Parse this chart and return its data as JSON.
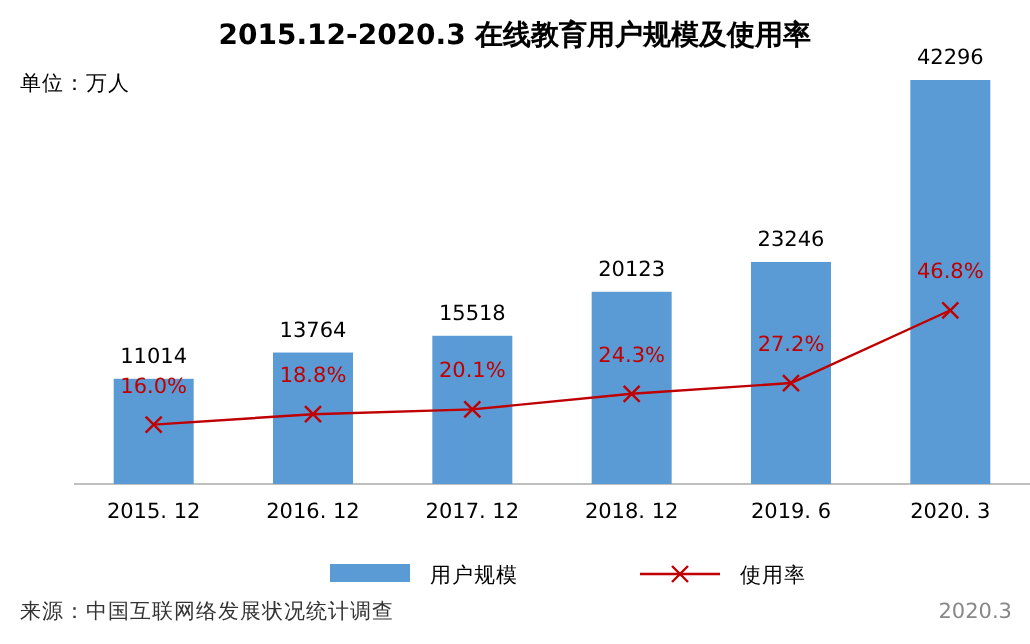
{
  "chart_data": {
    "type": "bar",
    "title": "2015.12-2020.3 在线教育用户规模及使用率",
    "categories": [
      "2015. 12",
      "2016. 12",
      "2017. 12",
      "2018. 12",
      "2019. 6",
      "2020. 3"
    ],
    "series": [
      {
        "name": "用户规模",
        "color": "#5b9bd5",
        "values": [
          11014,
          13764,
          15518,
          20123,
          23246,
          42296
        ],
        "value_labels": [
          "11014",
          "13764",
          "15518",
          "20123",
          "23246",
          "42296"
        ]
      },
      {
        "name": "使用率",
        "type": "line",
        "axis": "y2",
        "marker": "cross",
        "color": "#c00000",
        "values": [
          16.0,
          18.8,
          20.1,
          24.3,
          27.2,
          46.8
        ],
        "value_labels": [
          "16.0%",
          "18.8%",
          "20.1%",
          "24.3%",
          "27.2%",
          "46.8%"
        ]
      }
    ],
    "legend": "bottom",
    "annotations": [
      "单位：万人",
      "来源：中国互联网络发展状况统计调查",
      "2020.3"
    ]
  }
}
